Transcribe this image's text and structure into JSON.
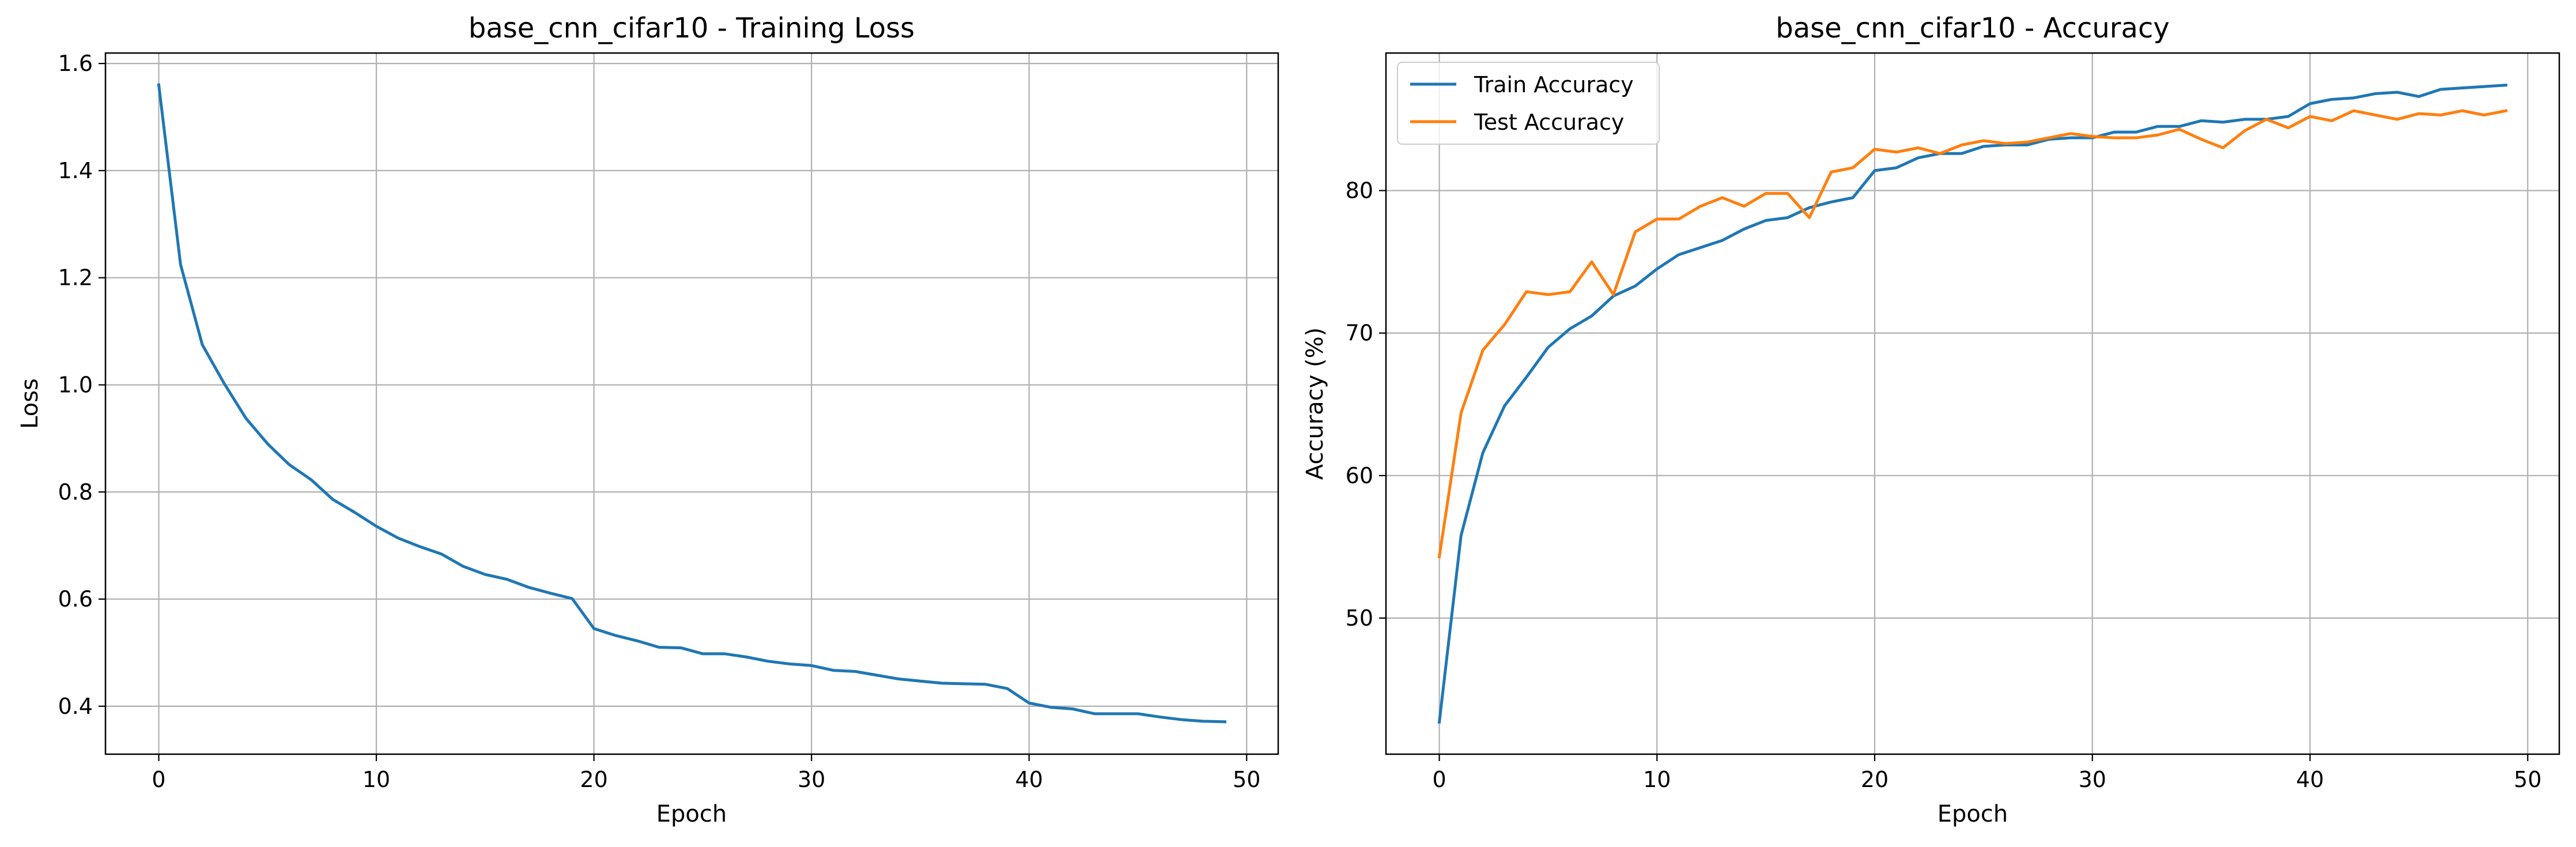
{
  "chart_data": [
    {
      "type": "line",
      "title": "base_cnn_cifar10 - Training Loss",
      "xlabel": "Epoch",
      "ylabel": "Loss",
      "xlim": [
        -2.45,
        51.45
      ],
      "ylim": [
        0.3105,
        1.6195
      ],
      "xticks": [
        0,
        10,
        20,
        30,
        40,
        50
      ],
      "yticks": [
        0.4,
        0.6,
        0.8,
        1.0,
        1.2,
        1.4,
        1.6
      ],
      "ytick_labels": [
        "0.4",
        "0.6",
        "0.8",
        "1.0",
        "1.2",
        "1.4",
        "1.6"
      ],
      "grid": true,
      "x": [
        0,
        1,
        2,
        3,
        4,
        5,
        6,
        7,
        8,
        9,
        10,
        11,
        12,
        13,
        14,
        15,
        16,
        17,
        18,
        19,
        20,
        21,
        22,
        23,
        24,
        25,
        26,
        27,
        28,
        29,
        30,
        31,
        32,
        33,
        34,
        35,
        36,
        37,
        38,
        39,
        40,
        41,
        42,
        43,
        44,
        45,
        46,
        47,
        48,
        49
      ],
      "series": [
        {
          "color": "#1f77b4",
          "values": [
            1.56,
            1.225,
            1.075,
            1.003,
            0.938,
            0.89,
            0.851,
            0.823,
            0.786,
            0.762,
            0.736,
            0.714,
            0.698,
            0.684,
            0.661,
            0.646,
            0.637,
            0.622,
            0.611,
            0.601,
            0.545,
            0.532,
            0.522,
            0.51,
            0.509,
            0.498,
            0.498,
            0.492,
            0.484,
            0.479,
            0.476,
            0.467,
            0.465,
            0.458,
            0.451,
            0.447,
            0.443,
            0.442,
            0.441,
            0.433,
            0.406,
            0.398,
            0.395,
            0.386,
            0.386,
            0.386,
            0.38,
            0.375,
            0.372,
            0.371
          ]
        }
      ]
    },
    {
      "type": "line",
      "title": "base_cnn_cifar10 - Accuracy",
      "xlabel": "Epoch",
      "ylabel": "Accuracy (%)",
      "xlim": [
        -2.45,
        51.45
      ],
      "ylim": [
        40.45,
        89.65
      ],
      "xticks": [
        0,
        10,
        20,
        30,
        40,
        50
      ],
      "yticks": [
        50,
        60,
        70,
        80
      ],
      "ytick_labels": [
        "50",
        "60",
        "70",
        "80"
      ],
      "grid": true,
      "legend_position": "upper-left",
      "x": [
        0,
        1,
        2,
        3,
        4,
        5,
        6,
        7,
        8,
        9,
        10,
        11,
        12,
        13,
        14,
        15,
        16,
        17,
        18,
        19,
        20,
        21,
        22,
        23,
        24,
        25,
        26,
        27,
        28,
        29,
        30,
        31,
        32,
        33,
        34,
        35,
        36,
        37,
        38,
        39,
        40,
        41,
        42,
        43,
        44,
        45,
        46,
        47,
        48,
        49
      ],
      "series": [
        {
          "name": "Train Accuracy",
          "color": "#1f77b4",
          "values": [
            42.7,
            55.8,
            61.6,
            64.9,
            66.9,
            69.0,
            70.3,
            71.2,
            72.6,
            73.3,
            74.5,
            75.5,
            76.0,
            76.5,
            77.3,
            77.9,
            78.1,
            78.8,
            79.2,
            79.5,
            81.4,
            81.6,
            82.3,
            82.6,
            82.6,
            83.1,
            83.2,
            83.2,
            83.6,
            83.7,
            83.7,
            84.1,
            84.1,
            84.5,
            84.5,
            84.9,
            84.8,
            85.0,
            85.0,
            85.2,
            86.1,
            86.4,
            86.5,
            86.8,
            86.9,
            86.6,
            87.1,
            87.2,
            87.3,
            87.4
          ]
        },
        {
          "name": "Test Accuracy",
          "color": "#ff7f0e",
          "values": [
            54.3,
            64.4,
            68.8,
            70.6,
            72.9,
            72.7,
            72.9,
            75.0,
            72.7,
            77.1,
            78.0,
            78.0,
            78.9,
            79.5,
            78.9,
            79.8,
            79.8,
            78.1,
            81.3,
            81.6,
            82.9,
            82.7,
            83.0,
            82.6,
            83.2,
            83.5,
            83.3,
            83.4,
            83.7,
            84.0,
            83.8,
            83.7,
            83.7,
            83.9,
            84.3,
            83.6,
            83.0,
            84.2,
            85.0,
            84.4,
            85.2,
            84.9,
            85.6,
            85.3,
            85.0,
            85.4,
            85.3,
            85.6,
            85.3,
            85.6
          ]
        }
      ]
    }
  ]
}
